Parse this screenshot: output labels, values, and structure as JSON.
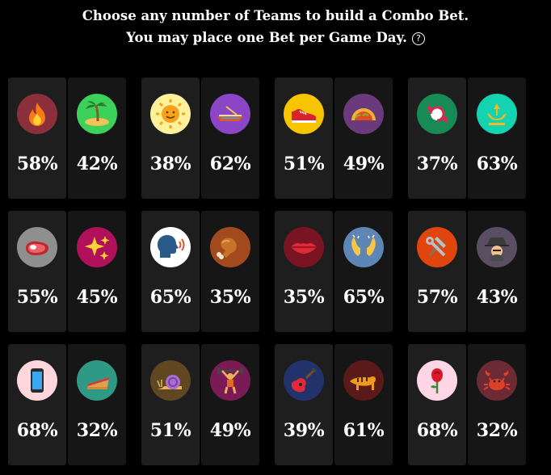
{
  "header": {
    "line1": "Choose any number of Teams to build a Combo Bet.",
    "line2": "You may place one Bet per Game Day.",
    "help_icon": "?"
  },
  "games": [
    {
      "teams": [
        {
          "icon": "fire-icon",
          "color": "#8b2f3a",
          "pct": "58%"
        },
        {
          "icon": "island-icon",
          "color": "#3bd15a",
          "pct": "42%"
        }
      ]
    },
    {
      "teams": [
        {
          "icon": "sun-icon",
          "color": "#fdf19a",
          "pct": "38%"
        },
        {
          "icon": "canoe-icon",
          "color": "#8b45c7",
          "pct": "62%"
        }
      ]
    },
    {
      "teams": [
        {
          "icon": "sneaker-icon",
          "color": "#f7c400",
          "pct": "51%"
        },
        {
          "icon": "taco-icon",
          "color": "#6a3a7c",
          "pct": "49%"
        }
      ]
    },
    {
      "teams": [
        {
          "icon": "candy-icon",
          "color": "#178a56",
          "pct": "37%"
        },
        {
          "icon": "trident-icon",
          "color": "#13d3b1",
          "pct": "63%"
        }
      ]
    },
    {
      "teams": [
        {
          "icon": "steak-icon",
          "color": "#8f8f8f",
          "pct": "55%"
        },
        {
          "icon": "sparkles-icon",
          "color": "#b0115a",
          "pct": "45%"
        }
      ]
    },
    {
      "teams": [
        {
          "icon": "speaking-head-icon",
          "color": "#ffffff",
          "pct": "65%"
        },
        {
          "icon": "drumstick-icon",
          "color": "#a24a1e",
          "pct": "35%"
        }
      ]
    },
    {
      "teams": [
        {
          "icon": "lips-icon",
          "color": "#7a1422",
          "pct": "35%"
        },
        {
          "icon": "raised-hands-icon",
          "color": "#5e86b4",
          "pct": "65%"
        }
      ]
    },
    {
      "teams": [
        {
          "icon": "hammer-wrench-icon",
          "color": "#e0450e",
          "pct": "57%"
        },
        {
          "icon": "detective-icon",
          "color": "#5a4f62",
          "pct": "43%"
        }
      ]
    },
    {
      "teams": [
        {
          "icon": "phone-icon",
          "color": "#ffd6dc",
          "pct": "68%"
        },
        {
          "icon": "pie-icon",
          "color": "#2e9a86",
          "pct": "32%"
        }
      ]
    },
    {
      "teams": [
        {
          "icon": "snail-icon",
          "color": "#5e4721",
          "pct": "51%"
        },
        {
          "icon": "weightlifter-icon",
          "color": "#7b1b55",
          "pct": "49%"
        }
      ]
    },
    {
      "teams": [
        {
          "icon": "guitar-icon",
          "color": "#22336b",
          "pct": "39%"
        },
        {
          "icon": "tiger-icon",
          "color": "#5b1a1a",
          "pct": "61%"
        }
      ]
    },
    {
      "teams": [
        {
          "icon": "rose-icon",
          "color": "#ffd6e6",
          "pct": "68%"
        },
        {
          "icon": "crab-icon",
          "color": "#6b2a34",
          "pct": "32%"
        }
      ]
    }
  ]
}
